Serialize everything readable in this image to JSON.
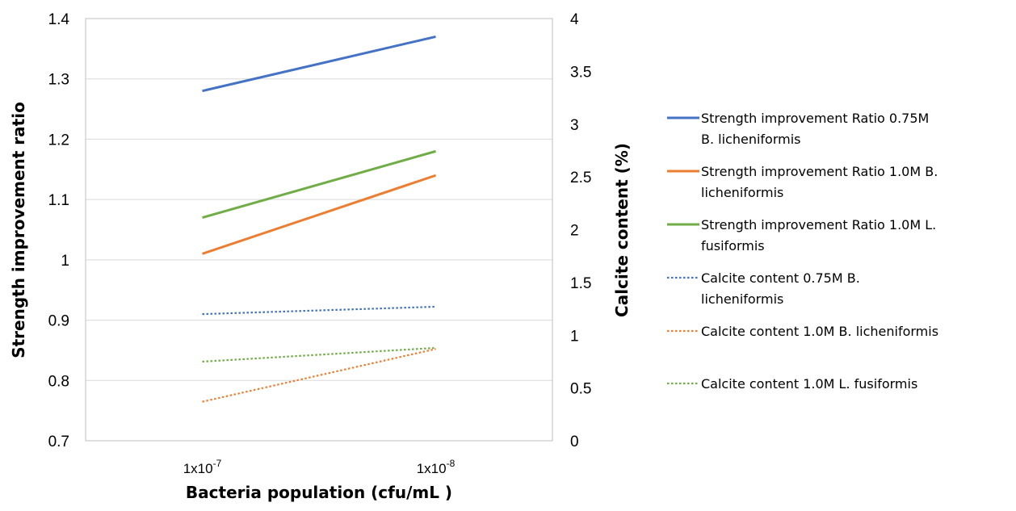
{
  "chart_data": {
    "type": "line",
    "categories": [
      "1x10-7",
      "1x10-8"
    ],
    "category_labels": [
      {
        "base": "1x10",
        "exp": "-7"
      },
      {
        "base": "1x10",
        "exp": "-8"
      }
    ],
    "xlabel": "Bacteria population (cfu/mL )",
    "ylabel": "Strength improvement ratio",
    "y2label": "Calcite content (%)",
    "ylim": [
      0.7,
      1.4
    ],
    "yticks": [
      "0.7",
      "0.8",
      "0.9",
      "1",
      "1.1",
      "1.2",
      "1.3",
      "1.4"
    ],
    "y2lim": [
      0,
      4
    ],
    "y2ticks": [
      "0",
      "0.5",
      "1",
      "1.5",
      "2",
      "2.5",
      "3",
      "3.5",
      "4"
    ],
    "grid": true,
    "legend_position": "right",
    "series": [
      {
        "name": "Strength improvement Ratio 0.75M B. licheniformis",
        "legend_lines": [
          "Strength improvement Ratio 0.75M",
          "B. licheniformis"
        ],
        "axis": "left",
        "values": [
          1.28,
          1.37
        ],
        "color": "#4472C4",
        "style": "solid"
      },
      {
        "name": "Strength improvement Ratio 1.0M B. licheniformis",
        "legend_lines": [
          "Strength improvement Ratio 1.0M  B.",
          "licheniformis"
        ],
        "axis": "left",
        "values": [
          1.01,
          1.14
        ],
        "color": "#ED7D31",
        "style": "solid"
      },
      {
        "name": "Strength improvement Ratio 1.0M L. fusiformis",
        "legend_lines": [
          "Strength improvement Ratio 1.0M L.",
          "fusiformis"
        ],
        "axis": "left",
        "values": [
          1.07,
          1.18
        ],
        "color": "#70AD47",
        "style": "solid"
      },
      {
        "name": "Calcite content 0.75M B. licheniformis",
        "legend_lines": [
          "Calcite content 0.75M  B.",
          "licheniformis"
        ],
        "axis": "right",
        "values": [
          1.2,
          1.27
        ],
        "color": "#4472C4",
        "style": "dotted"
      },
      {
        "name": "Calcite content 1.0M B. licheniformis",
        "legend_lines": [
          "Calcite content 1.0M  B. licheniformis"
        ],
        "axis": "right",
        "values": [
          0.37,
          0.87
        ],
        "color": "#ED7D31",
        "style": "dotted"
      },
      {
        "name": "Calcite content 1.0M L. fusiformis",
        "legend_lines": [
          "Calcite content 1.0M L. fusiformis"
        ],
        "axis": "right",
        "values": [
          0.75,
          0.88
        ],
        "color": "#70AD47",
        "style": "dotted"
      }
    ]
  }
}
